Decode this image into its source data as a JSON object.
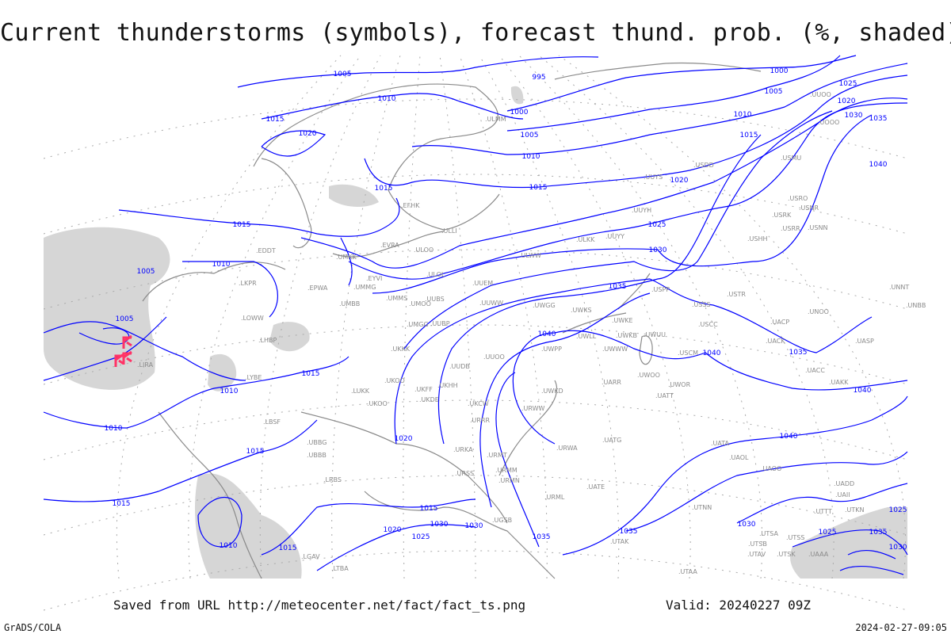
{
  "title": "Current thunderstorms (symbols), forecast thund. prob. (%, shaded)",
  "footer": {
    "saved_from": "Saved from URL http://meteocenter.net/fact/fact_ts.png",
    "valid": "Valid: 20240227 09Z",
    "software": "GrADS/COLA",
    "generated": "2024-02-27-09:05"
  },
  "colors": {
    "isobars": "#0000ff",
    "coastlines": "#8a8a8a",
    "shading": "#d6d6d6",
    "thunderstorm_symbol": "#ff3366"
  },
  "isobar_labels": [
    "1005",
    "995",
    "1000",
    "1025",
    "1005",
    "1020",
    "1010",
    "1015",
    "1020",
    "1000",
    "1005",
    "1010",
    "1030",
    "1035",
    "1015",
    "1010",
    "1015",
    "1015",
    "1020",
    "1040",
    "1015",
    "1025",
    "1010",
    "1030",
    "1005",
    "1035",
    "1005",
    "1040",
    "1040",
    "1035",
    "1015",
    "1010",
    "1040",
    "1010",
    "1020",
    "1040",
    "1015",
    "1015",
    "1015",
    "1030",
    "1030",
    "1030",
    "1020",
    "1025",
    "1035",
    "1035",
    "1010",
    "1015",
    "1025",
    "1035",
    "1030",
    "1025"
  ],
  "stations": [
    "ULMM",
    "ULOO",
    "EFHK",
    "ULLI",
    "ULWW",
    "EVRA",
    "UMKK",
    "EYVI",
    "UMMG",
    "UMBB",
    "UMMS",
    "UMOO",
    "UUBS",
    "UUEM",
    "ULOL",
    "UMGG",
    "UUBP",
    "UUWW",
    "UWGG",
    "UWKS",
    "UKKK",
    "UUOO",
    "UUDB",
    "UKHH",
    "UKOO",
    "UKDE",
    "UKCW",
    "UKFF",
    "LUKK",
    "UKOO",
    "URRR",
    "URWW",
    "UWKD",
    "UWPP",
    "UWLL",
    "UWWW",
    "UWKE",
    "UWKB",
    "UWUU",
    "UARR",
    "UWOO",
    "UWOR",
    "UATT",
    "USCM",
    "USCC",
    "USSS",
    "USPP",
    "USTR",
    "UACP",
    "UACK",
    "UNOO",
    "UACC",
    "UAKK",
    "UASP",
    "UNNT",
    "UNBB",
    "USHH",
    "USRR",
    "USNN",
    "USRK",
    "USNR",
    "USRO",
    "UUYS",
    "UUYH",
    "UUYY",
    "ULKK",
    "USDD",
    "USMU",
    "UUOO",
    "UOOO",
    "UATG",
    "UATA",
    "UAOL",
    "UAOO",
    "UADD",
    "UAII",
    "UTAK",
    "UATE",
    "URML",
    "URMM",
    "URMN",
    "URMT",
    "URWA",
    "URKA",
    "URSS",
    "UBBG",
    "UBBB",
    "UGSB",
    "UTTT",
    "UTKN",
    "UTSA",
    "UTSS",
    "UTSB",
    "UTAV",
    "UTSK",
    "UTAA",
    "UTNN",
    "UAAA",
    "LYBE",
    "LBSF",
    "LRBS",
    "LIRA",
    "LHBP",
    "LOWW",
    "LKPR",
    "EPWA",
    "EDDT",
    "LGAV",
    "LTBA"
  ]
}
